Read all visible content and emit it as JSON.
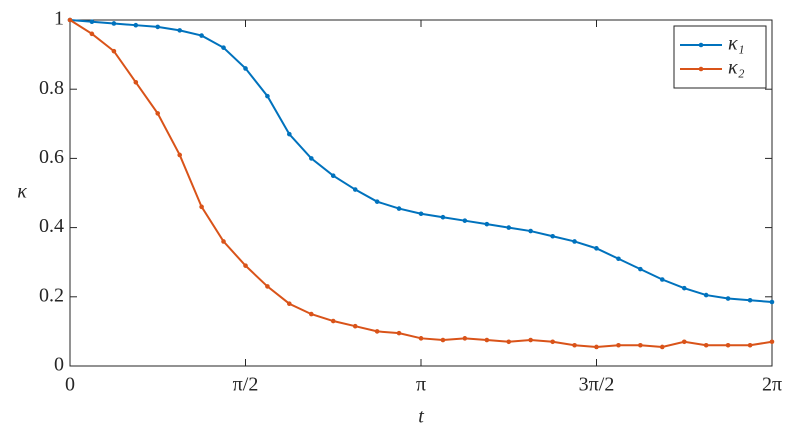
{
  "chart_data": {
    "type": "line",
    "x_label": "t",
    "y_label": "κ",
    "x": [
      0,
      0.196,
      0.393,
      0.589,
      0.785,
      0.982,
      1.178,
      1.374,
      1.571,
      1.767,
      1.963,
      2.16,
      2.356,
      2.553,
      2.749,
      2.945,
      3.142,
      3.338,
      3.534,
      3.731,
      3.927,
      4.123,
      4.32,
      4.516,
      4.712,
      4.909,
      5.105,
      5.301,
      5.498,
      5.694,
      5.89,
      6.087,
      6.283
    ],
    "series": [
      {
        "name": "κ₁",
        "color": "#0072bd",
        "values": [
          1.0,
          0.995,
          0.99,
          0.985,
          0.98,
          0.97,
          0.955,
          0.92,
          0.86,
          0.78,
          0.67,
          0.6,
          0.55,
          0.51,
          0.475,
          0.455,
          0.44,
          0.43,
          0.42,
          0.41,
          0.4,
          0.39,
          0.375,
          0.36,
          0.34,
          0.31,
          0.28,
          0.25,
          0.225,
          0.205,
          0.195,
          0.19,
          0.185
        ]
      },
      {
        "name": "κ₂",
        "color": "#d95319",
        "values": [
          1.0,
          0.96,
          0.91,
          0.82,
          0.73,
          0.61,
          0.46,
          0.36,
          0.29,
          0.23,
          0.18,
          0.15,
          0.13,
          0.115,
          0.1,
          0.095,
          0.08,
          0.075,
          0.08,
          0.075,
          0.07,
          0.075,
          0.07,
          0.06,
          0.055,
          0.06,
          0.06,
          0.055,
          0.07,
          0.06,
          0.06,
          0.06,
          0.07
        ]
      }
    ],
    "xlim": [
      0,
      6.2832
    ],
    "ylim": [
      0,
      1
    ],
    "xticks": [
      {
        "value": 0,
        "label": "0"
      },
      {
        "value": 1.5708,
        "label": "π/2"
      },
      {
        "value": 3.1416,
        "label": "π"
      },
      {
        "value": 4.7124,
        "label": "3π/2"
      },
      {
        "value": 6.2832,
        "label": "2π"
      }
    ],
    "yticks": [
      0,
      0.2,
      0.4,
      0.6,
      0.8,
      1
    ],
    "legend": "upper right",
    "grid": false
  }
}
